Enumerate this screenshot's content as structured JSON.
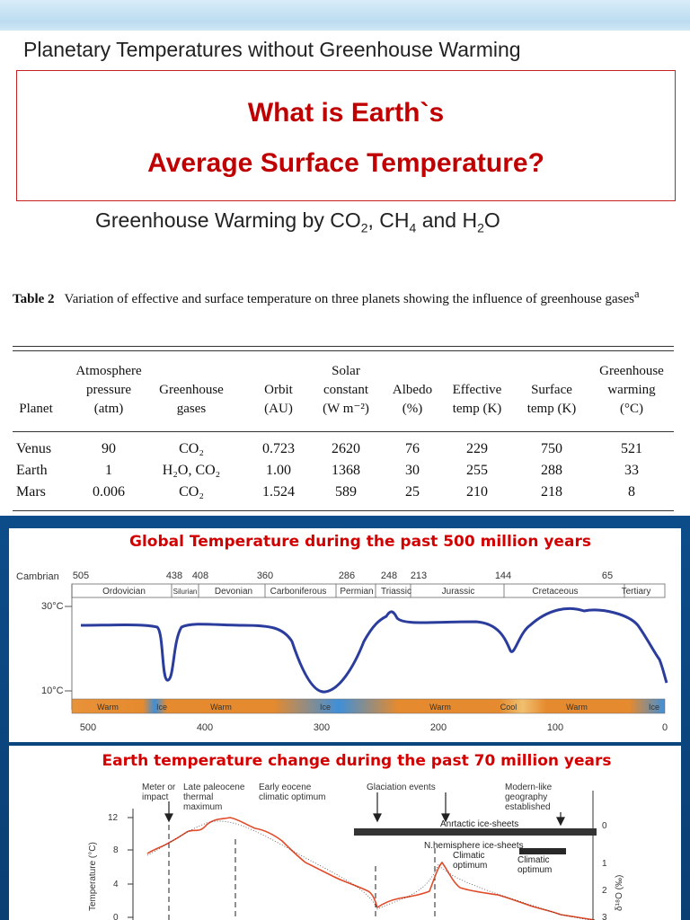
{
  "title_top": "Planetary Temperatures without Greenhouse Warming",
  "question_line1": "What is Earth`s",
  "question_line2": "Average Surface Temperature?",
  "title_mid": {
    "pre": "Greenhouse Warming by CO",
    "s1": "2",
    "mid1": ", CH",
    "s2": "4",
    "mid2": " and H",
    "s3": "2",
    "end": "O"
  },
  "table": {
    "caption_bold": "Table 2",
    "caption": "Variation of effective and surface temperature on three planets showing the influence of greenhouse gases",
    "caption_sup": "a",
    "headers": [
      "Planet",
      "Atmosphere pressure (atm)",
      "Greenhouse gases",
      "Orbit (AU)",
      "Solar constant (W m⁻²)",
      "Albedo (%)",
      "Effective temp (K)",
      "Surface temp (K)",
      "Greenhouse warming (°C)"
    ],
    "rows": [
      [
        "Venus",
        "90",
        "CO₂",
        "0.723",
        "2620",
        "76",
        "229",
        "750",
        "521"
      ],
      [
        "Earth",
        "1",
        "H₂O, CO₂",
        "1.00",
        "1368",
        "30",
        "255",
        "288",
        "33"
      ],
      [
        "Mars",
        "0.006",
        "CO₂",
        "1.524",
        "589",
        "25",
        "210",
        "218",
        "8"
      ]
    ]
  },
  "chart1": {
    "title": "Global Temperature during the past 500 million years",
    "left_label": "Cambrian",
    "ticks_top": [
      "505",
      "438",
      "408",
      "360",
      "286",
      "248",
      "213",
      "144",
      "65"
    ],
    "periods": [
      "Ordovician",
      "Silurian",
      "Devonian",
      "Carboniferous",
      "Permian",
      "Triassic",
      "Jurassic",
      "Cretaceous",
      "Tertiary"
    ],
    "y_labels": [
      "30°C",
      "10°C"
    ],
    "climate": [
      "Warm",
      "Ice",
      "Warm",
      "Ice",
      "Warm",
      "Cool",
      "Warm",
      "Ice"
    ],
    "x_labels": [
      "500",
      "400",
      "300",
      "200",
      "100",
      "0"
    ]
  },
  "chart2": {
    "title": "Earth temperature change during the past 70 million years",
    "events": [
      "Meter or impact",
      "Late paleocene thermal maximum",
      "Early eocene climatic optimum",
      "Glaciation events",
      "Modern-like geography established"
    ],
    "annotations": [
      "Anrtactic ice-sheets",
      "N.hemisphere ice-sheets",
      "Climatic optimum",
      "Climatic optimum"
    ],
    "ylabel": "Temperature (°C)",
    "y_ticks": [
      "12",
      "8",
      "4",
      "0"
    ],
    "right_ticks": [
      "0",
      "1",
      "2",
      "3"
    ],
    "right_label": "δ¹⁸O (‰)"
  },
  "colors": {
    "question": "#c00000",
    "chart_title": "#d40000",
    "curve": "#2b3d9c",
    "warm": "#e68a32",
    "ice": "#3f8fd8"
  }
}
